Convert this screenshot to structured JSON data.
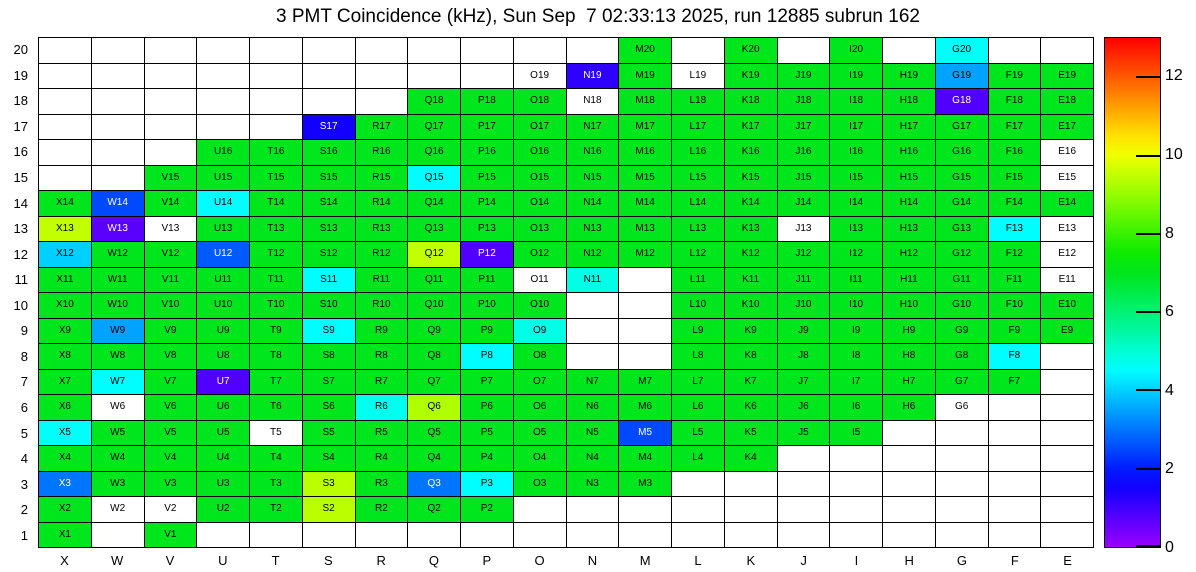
{
  "chart_data": {
    "type": "heatmap",
    "title": "3 PMT Coincidence (kHz), Sun Sep  7 02:33:13 2025, run 12885 subrun 162",
    "columns": [
      "X",
      "W",
      "V",
      "U",
      "T",
      "S",
      "R",
      "Q",
      "P",
      "O",
      "N",
      "M",
      "L",
      "K",
      "J",
      "I",
      "H",
      "G",
      "F",
      "E"
    ],
    "rows": [
      20,
      19,
      18,
      17,
      16,
      15,
      14,
      13,
      12,
      11,
      10,
      9,
      8,
      7,
      6,
      5,
      4,
      3,
      2,
      1
    ],
    "colorbar": {
      "min": 0,
      "max": 13,
      "ticks": [
        0,
        2,
        4,
        6,
        8,
        10,
        12
      ]
    },
    "encoding": "value in kHz; -1 = channel drawn white with label (~0); null = no channel",
    "grid": [
      {
        "row": 20,
        "values": [
          null,
          null,
          null,
          null,
          null,
          null,
          null,
          null,
          null,
          null,
          null,
          7,
          null,
          7,
          null,
          7,
          null,
          4.6,
          null,
          null
        ]
      },
      {
        "row": 19,
        "values": [
          null,
          null,
          null,
          null,
          null,
          null,
          null,
          null,
          null,
          -1,
          1.2,
          7,
          -1,
          7,
          7,
          7,
          7,
          3.5,
          7,
          7
        ]
      },
      {
        "row": 18,
        "values": [
          null,
          null,
          null,
          null,
          null,
          null,
          null,
          7,
          7,
          7,
          -1,
          7,
          7,
          7,
          7,
          7,
          7,
          0.8,
          7,
          7
        ]
      },
      {
        "row": 17,
        "values": [
          null,
          null,
          null,
          null,
          null,
          1.5,
          7,
          7,
          7,
          7,
          7,
          7,
          7,
          7,
          7,
          7,
          7,
          7,
          7,
          7
        ]
      },
      {
        "row": 16,
        "values": [
          null,
          null,
          null,
          7,
          7,
          7,
          7,
          7,
          7,
          7,
          7,
          7,
          7,
          7,
          7,
          7,
          7,
          7,
          7,
          -1
        ]
      },
      {
        "row": 15,
        "values": [
          null,
          null,
          7,
          7,
          7,
          7,
          7,
          4.5,
          7,
          7,
          7,
          7,
          7,
          7,
          7,
          7,
          7,
          7,
          7,
          -1
        ]
      },
      {
        "row": 14,
        "values": [
          7,
          2.5,
          7,
          4.5,
          7,
          7,
          7,
          7,
          7,
          7,
          7,
          7,
          7,
          7,
          7,
          7,
          7,
          7,
          7,
          7
        ]
      },
      {
        "row": 13,
        "values": [
          9.5,
          0.7,
          -1,
          7,
          7,
          7,
          7,
          7,
          7,
          7,
          7,
          7,
          7,
          7,
          -1,
          7,
          7,
          7,
          4.5,
          -1
        ]
      },
      {
        "row": 12,
        "values": [
          4,
          7,
          7,
          2.7,
          7,
          7,
          7,
          9.5,
          0.8,
          7,
          7,
          7,
          7,
          7,
          7,
          7,
          7,
          7,
          7,
          -1
        ]
      },
      {
        "row": 11,
        "values": [
          7,
          7,
          7,
          7,
          7,
          4.5,
          7,
          7,
          7,
          -1,
          4.8,
          null,
          7,
          7,
          7,
          7,
          7,
          7,
          7,
          -1
        ]
      },
      {
        "row": 10,
        "values": [
          7,
          7,
          7,
          7,
          7,
          7,
          7,
          7,
          7,
          7,
          null,
          null,
          7,
          7,
          7,
          7,
          7,
          7,
          7,
          7
        ]
      },
      {
        "row": 9,
        "values": [
          7,
          3.5,
          7,
          7,
          7,
          4.5,
          7,
          7,
          7,
          4.8,
          null,
          null,
          7,
          7,
          7,
          7,
          7,
          7,
          7,
          7
        ]
      },
      {
        "row": 8,
        "values": [
          7,
          7,
          7,
          7,
          7,
          7,
          7,
          7,
          4.5,
          7,
          null,
          null,
          7,
          7,
          7,
          7,
          7,
          7,
          4.5,
          null
        ]
      },
      {
        "row": 7,
        "values": [
          7,
          4.5,
          7,
          0.8,
          7,
          7,
          7,
          7,
          7,
          7,
          7,
          7,
          7,
          7,
          7,
          7,
          7,
          7,
          7,
          null
        ]
      },
      {
        "row": 6,
        "values": [
          7,
          -1,
          7,
          7,
          7,
          7,
          4.7,
          9.3,
          7,
          7,
          7,
          7,
          7,
          7,
          7,
          7,
          7,
          -1,
          null,
          null
        ]
      },
      {
        "row": 5,
        "values": [
          4.6,
          7,
          7,
          7,
          -1,
          7,
          7,
          7,
          7,
          7,
          7,
          2.5,
          7,
          7,
          7,
          7,
          null,
          null,
          null,
          null
        ]
      },
      {
        "row": 4,
        "values": [
          7,
          7,
          7,
          7,
          7,
          7,
          7,
          7,
          7,
          7,
          7,
          7,
          7,
          7,
          null,
          null,
          null,
          null,
          null,
          null
        ]
      },
      {
        "row": 3,
        "values": [
          3,
          7,
          7,
          7,
          7,
          9.4,
          7,
          3,
          4.5,
          7,
          7,
          7,
          null,
          null,
          null,
          null,
          null,
          null,
          null,
          null
        ]
      },
      {
        "row": 2,
        "values": [
          7,
          -1,
          -1,
          7,
          7,
          9.4,
          7,
          7,
          7,
          null,
          null,
          null,
          null,
          null,
          null,
          null,
          null,
          null,
          null,
          null
        ]
      },
      {
        "row": 1,
        "values": [
          7,
          null,
          7,
          null,
          null,
          null,
          null,
          null,
          null,
          null,
          null,
          null,
          null,
          null,
          null,
          null,
          null,
          null,
          null,
          null
        ]
      }
    ]
  }
}
